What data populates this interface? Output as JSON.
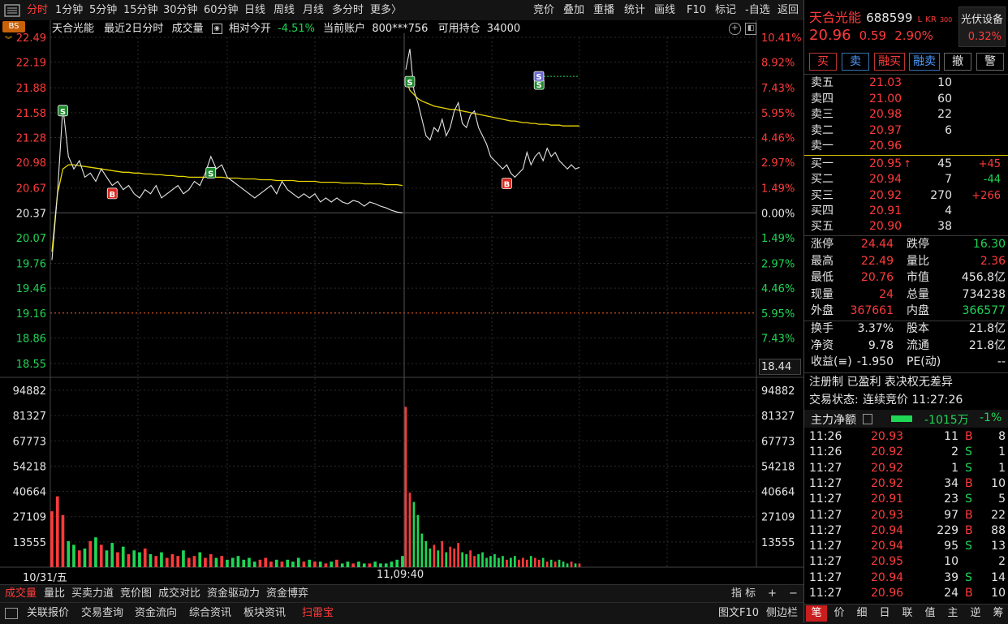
{
  "toolbar": {
    "periods": [
      "分时",
      "1分钟",
      "5分钟",
      "15分钟",
      "30分钟",
      "60分钟",
      "日线",
      "周线",
      "月线",
      "多分时",
      "更多〉"
    ],
    "tools": [
      "竞价",
      "叠加",
      "重播",
      "统计",
      "画线",
      "F10",
      "标记",
      "-自选",
      "返回"
    ],
    "bs_badge": "BS"
  },
  "chart_header": {
    "stock_name": "天合光能",
    "mode": "最近2日分时",
    "volume_label": "成交量",
    "relative_label": "相对今开",
    "relative_value": "-4.51%",
    "account_label": "当前账户",
    "account": "800***756",
    "position_label": "可用持仓",
    "position": "34000"
  },
  "chart_data": {
    "type": "line",
    "price_ticks": [
      "22.49",
      "22.19",
      "21.88",
      "21.58",
      "21.28",
      "20.98",
      "20.67",
      "20.37",
      "20.07",
      "19.76",
      "19.46",
      "19.16",
      "18.86",
      "18.55"
    ],
    "pct_ticks": [
      "10.41%",
      "8.92%",
      "7.43%",
      "5.95%",
      "4.46%",
      "2.97%",
      "1.49%",
      "0.00%",
      "1.49%",
      "2.97%",
      "4.46%",
      "5.95%",
      "7.43%"
    ],
    "vol_ticks": [
      "94882",
      "81327",
      "67773",
      "54218",
      "40664",
      "27109",
      "13555"
    ],
    "cursor_price": "18.44",
    "ylim": [
      18.55,
      22.49
    ],
    "base_price": 20.37,
    "dotted_level": 19.16,
    "x_labels": [
      "10/31/五",
      "11,09:40"
    ],
    "day1_price": [
      19.8,
      20.6,
      21.65,
      21.05,
      20.9,
      21.0,
      20.8,
      20.85,
      20.75,
      20.9,
      20.8,
      20.7,
      20.75,
      20.65,
      20.7,
      20.6,
      20.55,
      20.65,
      20.6,
      20.7,
      20.55,
      20.6,
      20.65,
      20.7,
      20.6,
      20.65,
      20.75,
      20.7,
      20.85,
      21.05,
      20.9,
      20.95,
      20.8,
      20.75,
      20.7,
      20.65,
      20.6,
      20.55,
      20.6,
      20.65,
      20.7,
      20.6,
      20.75,
      20.65,
      20.6,
      20.55,
      20.6,
      20.55,
      20.6,
      20.5,
      20.55,
      20.5,
      20.55,
      20.5,
      20.48,
      20.52,
      20.5,
      20.45,
      20.5,
      20.48,
      20.45,
      20.43,
      20.4,
      20.38,
      20.37
    ],
    "day1_avg": [
      19.9,
      20.6,
      20.9,
      20.95,
      20.95,
      20.94,
      20.93,
      20.92,
      20.91,
      20.9,
      20.89,
      20.88,
      20.87,
      20.86,
      20.86,
      20.85,
      20.85,
      20.84,
      20.84,
      20.83,
      20.83,
      20.82,
      20.82,
      20.81,
      20.81,
      20.8,
      20.8,
      20.8,
      20.8,
      20.8,
      20.8,
      20.8,
      20.79,
      20.79,
      20.79,
      20.78,
      20.78,
      20.78,
      20.77,
      20.77,
      20.77,
      20.76,
      20.76,
      20.76,
      20.76,
      20.75,
      20.75,
      20.75,
      20.75,
      20.74,
      20.74,
      20.74,
      20.74,
      20.73,
      20.73,
      20.73,
      20.73,
      20.72,
      20.72,
      20.72,
      20.72,
      20.71,
      20.71,
      20.71,
      20.7
    ],
    "day2_price": [
      22.1,
      22.35,
      21.85,
      21.7,
      21.5,
      21.3,
      21.25,
      21.4,
      21.35,
      21.5,
      21.3,
      21.4,
      21.6,
      21.7,
      21.45,
      21.4,
      21.55,
      21.6,
      21.4,
      21.3,
      21.2,
      21.05,
      21.0,
      20.95,
      20.9,
      20.95,
      20.85,
      20.8,
      20.85,
      20.9,
      21.1,
      20.95,
      21.05,
      21.1,
      21.0,
      21.15,
      21.05,
      21.1,
      21.0,
      20.95,
      20.9,
      20.95,
      20.9,
      20.92
    ],
    "day2_avg": [
      22.0,
      21.85,
      21.8,
      21.75,
      21.72,
      21.7,
      21.68,
      21.66,
      21.65,
      21.64,
      21.63,
      21.62,
      21.62,
      21.61,
      21.6,
      21.59,
      21.58,
      21.57,
      21.56,
      21.55,
      21.54,
      21.53,
      21.52,
      21.51,
      21.5,
      21.49,
      21.48,
      21.48,
      21.47,
      21.46,
      21.46,
      21.45,
      21.45,
      21.44,
      21.44,
      21.44,
      21.43,
      21.43,
      21.43,
      21.42,
      21.42,
      21.42,
      21.42,
      21.42
    ],
    "day1_vol": [
      30000,
      38000,
      28000,
      14000,
      12000,
      9000,
      10000,
      14000,
      16000,
      12000,
      9000,
      13000,
      8000,
      11000,
      7000,
      9000,
      8000,
      10000,
      7000,
      6000,
      8000,
      5000,
      7000,
      6000,
      9000,
      5000,
      6000,
      8000,
      5000,
      7000,
      5000,
      6000,
      4000,
      5000,
      6000,
      4000,
      5000,
      3000,
      4000,
      5000,
      3000,
      4000,
      3000,
      4000,
      3000,
      5000,
      3000,
      4000,
      3000,
      3000,
      2000,
      3000,
      4000,
      2000,
      3000,
      2000,
      3000,
      2000,
      2000,
      3000,
      2000,
      2000,
      3000,
      4000,
      6000
    ],
    "day2_vol": [
      86000,
      40000,
      35000,
      28000,
      18000,
      14000,
      10000,
      12000,
      9000,
      14000,
      8000,
      11000,
      10000,
      13000,
      8000,
      7000,
      9000,
      6000,
      7000,
      8000,
      5000,
      6000,
      7000,
      5000,
      6000,
      4000,
      5000,
      6000,
      4000,
      5000,
      4000,
      6000,
      5000,
      4000,
      5000,
      3000,
      4000,
      3000,
      4000,
      3000,
      2000,
      3000,
      2000,
      2000
    ],
    "markers": [
      {
        "label": "S",
        "day": 1,
        "index": 2,
        "price": 21.6
      },
      {
        "label": "B",
        "day": 1,
        "index": 11,
        "price": 20.6
      },
      {
        "label": "S",
        "day": 1,
        "index": 29,
        "price": 20.85
      },
      {
        "label": "S",
        "day": 2,
        "index": 1,
        "price": 21.95
      },
      {
        "label": "B",
        "day": 2,
        "index": 25,
        "price": 20.72
      },
      {
        "label": "S",
        "day": 2,
        "index": 33,
        "price": 21.92
      }
    ]
  },
  "chart_bottom_tabs": [
    "成交量",
    "量比",
    "买卖力道",
    "竞价图",
    "成交对比",
    "资金驱动力",
    "资金博弈"
  ],
  "chart_bottom_right": [
    "指 标",
    "+",
    "−"
  ],
  "footer_tabs": [
    "关联报价",
    "交易查询",
    "资金流向",
    "综合资讯",
    "板块资讯",
    "扫雷宝"
  ],
  "footer_right": [
    "图文F10",
    "侧边栏"
  ],
  "quote": {
    "name": "天合光能",
    "code": "688599",
    "tags": [
      "L",
      "KR",
      "300"
    ],
    "sector": "光伏设备",
    "sector_pct": "0.32%",
    "price": "20.96",
    "change": "0.59",
    "change_pct": "2.90%",
    "actions": [
      "买",
      "卖",
      "融买",
      "融卖",
      "撤",
      "警"
    ],
    "asks": [
      {
        "label": "卖五",
        "price": "21.03",
        "vol": "10"
      },
      {
        "label": "卖四",
        "price": "21.00",
        "vol": "60"
      },
      {
        "label": "卖三",
        "price": "20.98",
        "vol": "22"
      },
      {
        "label": "卖二",
        "price": "20.97",
        "vol": "6"
      },
      {
        "label": "卖一",
        "price": "20.96",
        "vol": ""
      }
    ],
    "bids": [
      {
        "label": "买一",
        "price": "20.95",
        "vol": "45",
        "delta": "+45",
        "arrow": "↑"
      },
      {
        "label": "买二",
        "price": "20.94",
        "vol": "7",
        "delta": "-44"
      },
      {
        "label": "买三",
        "price": "20.92",
        "vol": "270",
        "delta": "+266"
      },
      {
        "label": "买四",
        "price": "20.91",
        "vol": "4",
        "delta": ""
      },
      {
        "label": "买五",
        "price": "20.90",
        "vol": "38",
        "delta": ""
      }
    ],
    "stats": [
      {
        "l1": "涨停",
        "v1": "24.44",
        "l2": "跌停",
        "v2": "16.30"
      },
      {
        "l1": "最高",
        "v1": "22.49",
        "l2": "量比",
        "v2": "2.36"
      },
      {
        "l1": "最低",
        "v1": "20.76",
        "l2": "市值",
        "v2": "456.8亿"
      },
      {
        "l1": "现量",
        "v1": "24",
        "l2": "总量",
        "v2": "734238"
      },
      {
        "l1": "外盘",
        "v1": "367661",
        "l2": "内盘",
        "v2": "366577"
      }
    ],
    "fund": [
      {
        "l1": "换手",
        "v1": "3.37%",
        "l2": "股本",
        "v2": "21.8亿"
      },
      {
        "l1": "净资",
        "v1": "9.78",
        "l2": "流通",
        "v2": "21.8亿"
      },
      {
        "l1": "收益(≡)",
        "v1": "-1.950",
        "l2": "PE(动)",
        "v2": "--"
      }
    ],
    "notes": "注册制 已盈利 表决权无差异",
    "trade_status_label": "交易状态:",
    "trade_status": "连续竞价 11:27:26",
    "main_flow_label": "主力净额",
    "main_flow_value": "-1015万",
    "main_flow_pct": "-1%",
    "ticks": [
      {
        "t": "11:26",
        "p": "20.93",
        "v": "11",
        "s": "B",
        "n": "8"
      },
      {
        "t": "11:26",
        "p": "20.92",
        "v": "2",
        "s": "S",
        "n": "1"
      },
      {
        "t": "11:27",
        "p": "20.92",
        "v": "1",
        "s": "S",
        "n": "1"
      },
      {
        "t": "11:27",
        "p": "20.92",
        "v": "34",
        "s": "B",
        "n": "10"
      },
      {
        "t": "11:27",
        "p": "20.91",
        "v": "23",
        "s": "S",
        "n": "5"
      },
      {
        "t": "11:27",
        "p": "20.93",
        "v": "97",
        "s": "B",
        "n": "22"
      },
      {
        "t": "11:27",
        "p": "20.94",
        "v": "229",
        "s": "B",
        "n": "88"
      },
      {
        "t": "11:27",
        "p": "20.94",
        "v": "95",
        "s": "S",
        "n": "13"
      },
      {
        "t": "11:27",
        "p": "20.95",
        "v": "10",
        "s": "",
        "n": "2"
      },
      {
        "t": "11:27",
        "p": "20.94",
        "v": "39",
        "s": "S",
        "n": "14"
      },
      {
        "t": "11:27",
        "p": "20.96",
        "v": "24",
        "s": "B",
        "n": "10"
      }
    ],
    "bottom_tabs": [
      "笔",
      "价",
      "细",
      "日",
      "联",
      "值",
      "主",
      "逆",
      "筹"
    ]
  }
}
